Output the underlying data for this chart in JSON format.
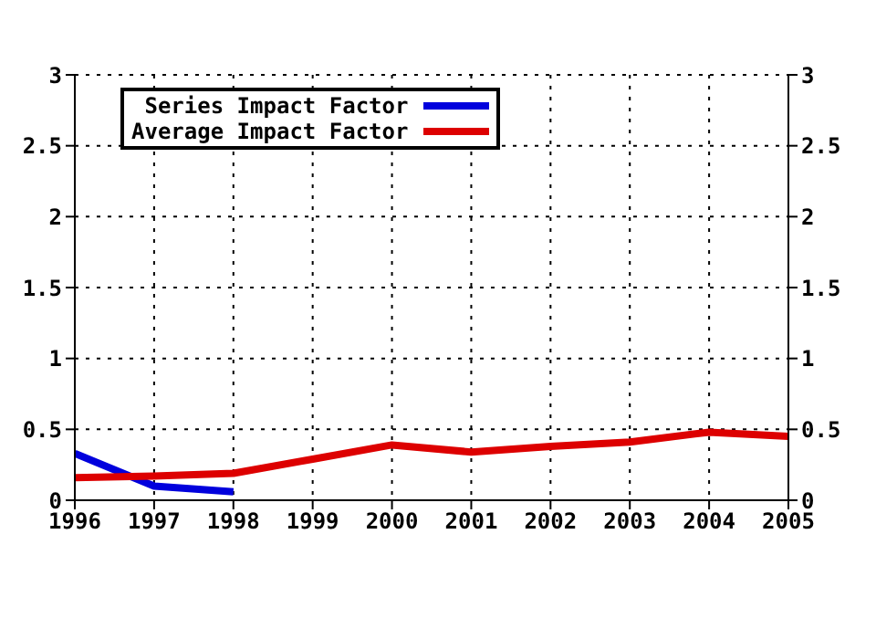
{
  "chart_data": {
    "type": "line",
    "x": [
      1996,
      1997,
      1998,
      1999,
      2000,
      2001,
      2002,
      2003,
      2004,
      2005
    ],
    "series": [
      {
        "name": "Series Impact Factor",
        "color": "#0000dd",
        "x": [
          1996,
          1997,
          1998
        ],
        "values": [
          0.33,
          0.1,
          0.06
        ]
      },
      {
        "name": "Average Impact Factor",
        "color": "#dd0000",
        "values": [
          0.16,
          0.17,
          0.19,
          0.29,
          0.39,
          0.34,
          0.38,
          0.41,
          0.48,
          0.45
        ]
      }
    ],
    "xlim": [
      1996,
      2005
    ],
    "xticks": [
      1996,
      1997,
      1998,
      1999,
      2000,
      2001,
      2002,
      2003,
      2004,
      2005
    ],
    "ylim": [
      0,
      3
    ],
    "yticks": [
      0,
      0.5,
      1,
      1.5,
      2,
      2.5,
      3
    ],
    "y2lim": [
      0,
      3
    ],
    "y2ticks": [
      0,
      0.5,
      1,
      1.5,
      2,
      2.5,
      3
    ],
    "grid": true,
    "legend": "top left",
    "marker": "none",
    "line_style": "solid"
  }
}
